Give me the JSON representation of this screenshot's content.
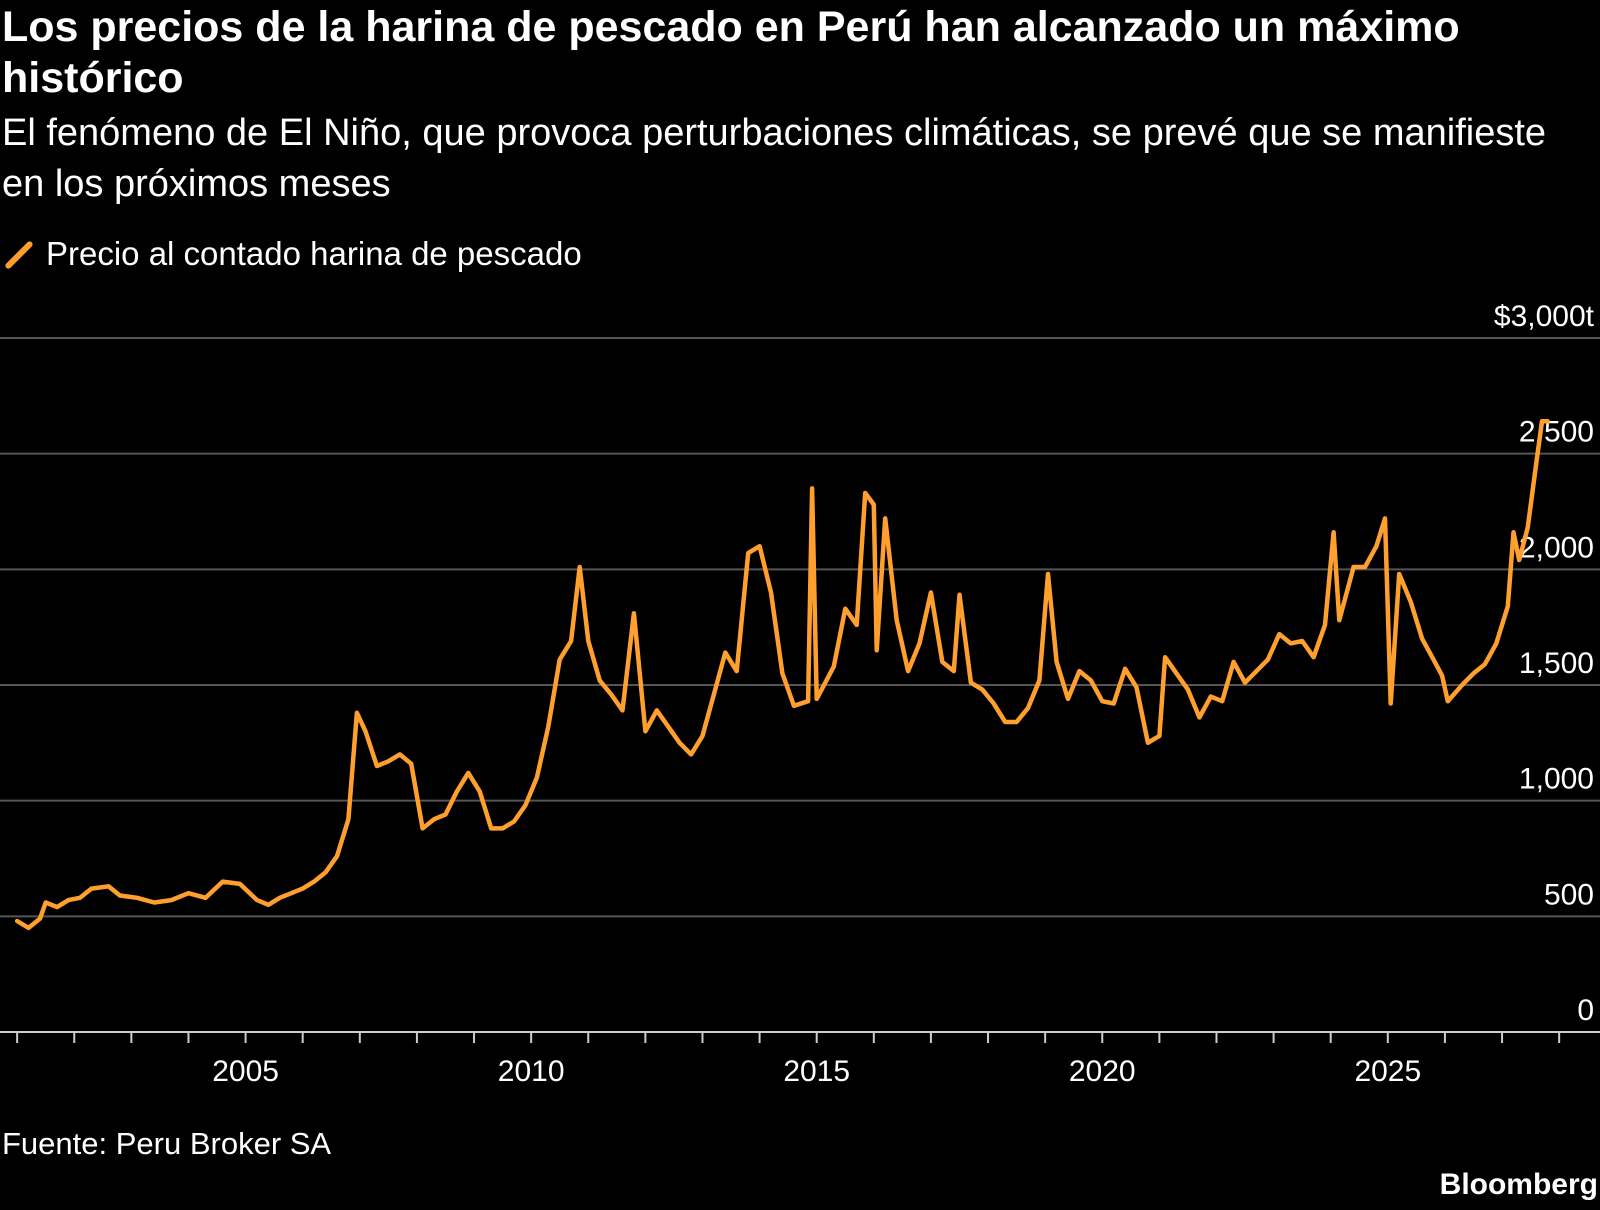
{
  "header": {
    "title": "Los precios de la harina de pescado en Perú han alcanzado un máximo histórico",
    "subtitle": "El fenómeno de El Niño, que provoca perturbaciones climáticas, se prevé que se manifieste en los próximos meses"
  },
  "footer": {
    "source": "Fuente: Peru Broker SA",
    "brand": "Bloomberg"
  },
  "colors": {
    "background": "#000000",
    "series": "#ff9f2e",
    "grid": "#555555",
    "text": "#ffffff"
  },
  "chart_data": {
    "type": "line",
    "title": "Los precios de la harina de pescado en Perú han alcanzado un máximo histórico",
    "subtitle": "El fenómeno de El Niño, que provoca perturbaciones climáticas, se prevé que se manifieste en los próximos meses",
    "xlabel": "",
    "ylabel": "",
    "legend_placement": "top-left",
    "grid": true,
    "xlim": [
      2000.7,
      2028.4
    ],
    "ylim": [
      0,
      3000
    ],
    "x_tick_labels": [
      "2005",
      "2010",
      "2015",
      "2020",
      "2025"
    ],
    "y_ticks": [
      {
        "value": 0,
        "label": "0"
      },
      {
        "value": 500,
        "label": "500"
      },
      {
        "value": 1000,
        "label": "1,000"
      },
      {
        "value": 1500,
        "label": "1,500"
      },
      {
        "value": 2000,
        "label": "2,000"
      },
      {
        "value": 2500,
        "label": "2,500"
      },
      {
        "value": 3000,
        "label": "$3,000t"
      }
    ],
    "series": [
      {
        "name": "Precio al contado harina de pescado",
        "points": [
          [
            2001.0,
            480
          ],
          [
            2001.2,
            450
          ],
          [
            2001.4,
            490
          ],
          [
            2001.5,
            560
          ],
          [
            2001.7,
            540
          ],
          [
            2001.9,
            570
          ],
          [
            2002.1,
            580
          ],
          [
            2002.3,
            620
          ],
          [
            2002.6,
            630
          ],
          [
            2002.8,
            590
          ],
          [
            2003.1,
            580
          ],
          [
            2003.4,
            560
          ],
          [
            2003.7,
            570
          ],
          [
            2004.0,
            600
          ],
          [
            2004.3,
            580
          ],
          [
            2004.6,
            650
          ],
          [
            2004.9,
            640
          ],
          [
            2005.2,
            570
          ],
          [
            2005.4,
            550
          ],
          [
            2005.6,
            580
          ],
          [
            2005.8,
            600
          ],
          [
            2006.0,
            620
          ],
          [
            2006.2,
            650
          ],
          [
            2006.4,
            690
          ],
          [
            2006.6,
            760
          ],
          [
            2006.8,
            920
          ],
          [
            2006.95,
            1380
          ],
          [
            2007.1,
            1300
          ],
          [
            2007.3,
            1150
          ],
          [
            2007.5,
            1170
          ],
          [
            2007.7,
            1200
          ],
          [
            2007.9,
            1160
          ],
          [
            2008.1,
            880
          ],
          [
            2008.3,
            920
          ],
          [
            2008.5,
            940
          ],
          [
            2008.7,
            1040
          ],
          [
            2008.9,
            1120
          ],
          [
            2009.1,
            1040
          ],
          [
            2009.3,
            880
          ],
          [
            2009.5,
            880
          ],
          [
            2009.7,
            910
          ],
          [
            2009.9,
            980
          ],
          [
            2010.1,
            1100
          ],
          [
            2010.3,
            1320
          ],
          [
            2010.5,
            1610
          ],
          [
            2010.7,
            1690
          ],
          [
            2010.85,
            2010
          ],
          [
            2011.0,
            1690
          ],
          [
            2011.2,
            1520
          ],
          [
            2011.4,
            1460
          ],
          [
            2011.6,
            1390
          ],
          [
            2011.8,
            1810
          ],
          [
            2012.0,
            1300
          ],
          [
            2012.2,
            1390
          ],
          [
            2012.4,
            1320
          ],
          [
            2012.6,
            1250
          ],
          [
            2012.8,
            1200
          ],
          [
            2013.0,
            1280
          ],
          [
            2013.2,
            1460
          ],
          [
            2013.4,
            1640
          ],
          [
            2013.6,
            1560
          ],
          [
            2013.8,
            2070
          ],
          [
            2014.0,
            2100
          ],
          [
            2014.2,
            1900
          ],
          [
            2014.4,
            1550
          ],
          [
            2014.6,
            1410
          ],
          [
            2014.85,
            1430
          ],
          [
            2014.92,
            2350
          ],
          [
            2015.0,
            1440
          ],
          [
            2015.3,
            1580
          ],
          [
            2015.5,
            1830
          ],
          [
            2015.7,
            1760
          ],
          [
            2015.85,
            2330
          ],
          [
            2016.0,
            2280
          ],
          [
            2016.05,
            1650
          ],
          [
            2016.2,
            2220
          ],
          [
            2016.4,
            1780
          ],
          [
            2016.6,
            1560
          ],
          [
            2016.8,
            1680
          ],
          [
            2017.0,
            1900
          ],
          [
            2017.2,
            1600
          ],
          [
            2017.4,
            1560
          ],
          [
            2017.5,
            1890
          ],
          [
            2017.7,
            1510
          ],
          [
            2017.9,
            1480
          ],
          [
            2018.1,
            1420
          ],
          [
            2018.3,
            1340
          ],
          [
            2018.5,
            1340
          ],
          [
            2018.7,
            1400
          ],
          [
            2018.9,
            1520
          ],
          [
            2019.05,
            1980
          ],
          [
            2019.2,
            1600
          ],
          [
            2019.4,
            1440
          ],
          [
            2019.6,
            1560
          ],
          [
            2019.8,
            1520
          ],
          [
            2020.0,
            1430
          ],
          [
            2020.2,
            1420
          ],
          [
            2020.4,
            1570
          ],
          [
            2020.6,
            1490
          ],
          [
            2020.8,
            1250
          ],
          [
            2021.0,
            1280
          ],
          [
            2021.1,
            1620
          ],
          [
            2021.3,
            1550
          ],
          [
            2021.5,
            1480
          ],
          [
            2021.7,
            1360
          ],
          [
            2021.9,
            1450
          ],
          [
            2022.1,
            1430
          ],
          [
            2022.3,
            1600
          ],
          [
            2022.5,
            1510
          ],
          [
            2022.7,
            1560
          ],
          [
            2022.9,
            1610
          ],
          [
            2023.1,
            1720
          ],
          [
            2023.3,
            1680
          ],
          [
            2023.5,
            1690
          ],
          [
            2023.7,
            1620
          ],
          [
            2023.9,
            1760
          ],
          [
            2024.05,
            2160
          ],
          [
            2024.15,
            1780
          ],
          [
            2024.4,
            2010
          ],
          [
            2024.6,
            2010
          ],
          [
            2024.8,
            2100
          ],
          [
            2024.95,
            2220
          ],
          [
            2025.05,
            1420
          ],
          [
            2025.2,
            1980
          ],
          [
            2025.4,
            1860
          ],
          [
            2025.6,
            1700
          ],
          [
            2025.8,
            1610
          ],
          [
            2025.95,
            1540
          ],
          [
            2026.05,
            1430
          ],
          [
            2026.3,
            1500
          ],
          [
            2026.5,
            1550
          ],
          [
            2026.7,
            1590
          ],
          [
            2026.9,
            1680
          ],
          [
            2027.1,
            1840
          ],
          [
            2027.2,
            2160
          ],
          [
            2027.3,
            2040
          ],
          [
            2027.45,
            2180
          ],
          [
            2027.6,
            2460
          ],
          [
            2027.7,
            2640
          ],
          [
            2027.8,
            2640
          ]
        ]
      }
    ]
  }
}
